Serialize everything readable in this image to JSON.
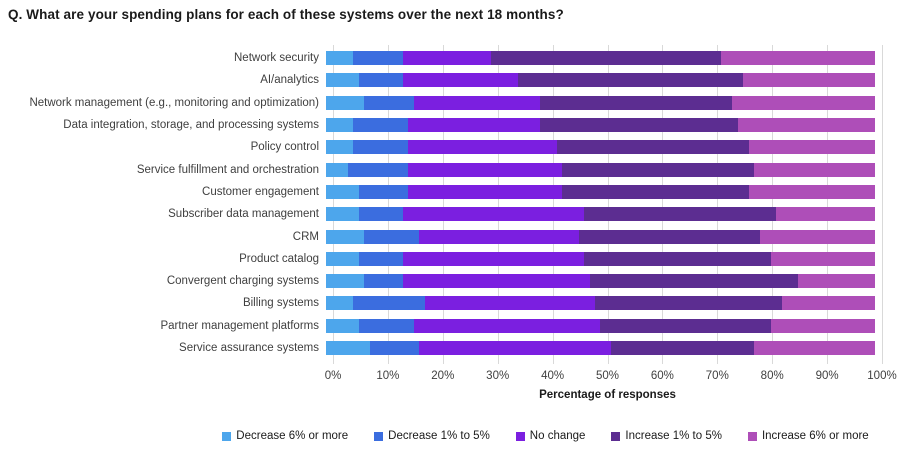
{
  "title": "Q. What are your spending plans for each of these systems over the next 18 months?",
  "chart_data": {
    "type": "bar",
    "orientation": "horizontal",
    "stacked": true,
    "unit": "percent",
    "title": "Q. What are your spending plans for each of these systems over the next 18 months?",
    "categories": [
      "Network security",
      "AI/analytics",
      "Network management (e.g., monitoring and optimization)",
      "Data integration, storage, and processing systems",
      "Policy control",
      "Service fulfillment and orchestration",
      "Customer engagement",
      "Subscriber data management",
      "CRM",
      "Product catalog",
      "Convergent charging systems",
      "Billing systems",
      "Partner management platforms",
      "Service assurance systems"
    ],
    "series": [
      {
        "name": "Decrease 6% or more",
        "color": "#4DA6EC",
        "values": [
          5,
          6,
          7,
          5,
          5,
          4,
          6,
          6,
          7,
          6,
          7,
          5,
          6,
          8
        ]
      },
      {
        "name": "Decrease 1% to 5%",
        "color": "#3B6DDF",
        "values": [
          9,
          8,
          9,
          10,
          10,
          11,
          9,
          8,
          10,
          8,
          7,
          13,
          10,
          9
        ]
      },
      {
        "name": "No change",
        "color": "#7B1FE0",
        "values": [
          16,
          21,
          23,
          24,
          27,
          28,
          28,
          33,
          29,
          33,
          34,
          31,
          34,
          35
        ]
      },
      {
        "name": "Increase 1% to 5%",
        "color": "#5C2D91",
        "values": [
          42,
          41,
          35,
          36,
          35,
          35,
          34,
          35,
          33,
          34,
          38,
          34,
          31,
          26
        ]
      },
      {
        "name": "Increase 6% or more",
        "color": "#AE4EB8",
        "values": [
          28,
          24,
          26,
          25,
          23,
          22,
          23,
          18,
          21,
          19,
          14,
          17,
          19,
          22
        ]
      }
    ],
    "xlabel": "Percentage of responses",
    "x_ticks": [
      "0%",
      "10%",
      "20%",
      "30%",
      "40%",
      "50%",
      "60%",
      "70%",
      "80%",
      "90%",
      "100%"
    ],
    "xlim": [
      0,
      100
    ],
    "grid": true,
    "gridline_color": "#d9d9d9",
    "legend_position": "bottom"
  }
}
